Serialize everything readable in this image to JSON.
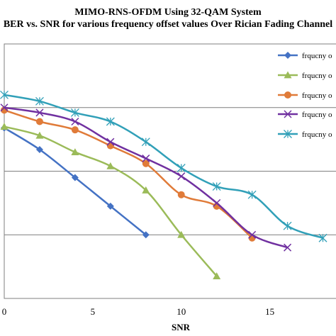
{
  "chart_data": {
    "type": "line",
    "title": "MIMO-RNS-OFDM Using 32-QAM System",
    "subtitle": "BER vs. SNR for various frequency offset values Over Rician Fading Channel",
    "xlabel": "SNR",
    "ylabel": "",
    "xlim": [
      0,
      18.5
    ],
    "ylim": [
      0,
      4
    ],
    "x_ticks": [
      "0",
      "5",
      "10",
      "15"
    ],
    "x_tick_values": [
      0,
      5,
      10,
      15
    ],
    "grid": true,
    "legend_position": "right",
    "series": [
      {
        "name": "frqucny o",
        "color": "#4472C4",
        "marker": "diamond",
        "points": [
          [
            0,
            2.68
          ],
          [
            2,
            2.34
          ],
          [
            4,
            1.9
          ],
          [
            6,
            1.45
          ],
          [
            8,
            1.0
          ]
        ]
      },
      {
        "name": "frqucny o",
        "color": "#9BBB59",
        "marker": "triangle",
        "points": [
          [
            0,
            2.7
          ],
          [
            2,
            2.56
          ],
          [
            4,
            2.3
          ],
          [
            6,
            2.08
          ],
          [
            8,
            1.7
          ],
          [
            10,
            1.0
          ],
          [
            12,
            0.35
          ]
        ]
      },
      {
        "name": "frqucny o",
        "color": "#E07B39",
        "marker": "circle",
        "points": [
          [
            0,
            2.96
          ],
          [
            2,
            2.78
          ],
          [
            4,
            2.65
          ],
          [
            6,
            2.4
          ],
          [
            8,
            2.12
          ],
          [
            10,
            1.63
          ],
          [
            12,
            1.45
          ],
          [
            14,
            0.95
          ]
        ]
      },
      {
        "name": "frqucny o",
        "color": "#7030A0",
        "marker": "x",
        "points": [
          [
            0,
            3.0
          ],
          [
            2,
            2.92
          ],
          [
            4,
            2.78
          ],
          [
            6,
            2.46
          ],
          [
            8,
            2.2
          ],
          [
            10,
            1.92
          ],
          [
            12,
            1.5
          ],
          [
            14,
            1.0
          ],
          [
            16,
            0.8
          ]
        ]
      },
      {
        "name": "frqucny o",
        "color": "#31A0B8",
        "marker": "star",
        "points": [
          [
            0,
            3.2
          ],
          [
            2,
            3.1
          ],
          [
            4,
            2.92
          ],
          [
            6,
            2.78
          ],
          [
            8,
            2.46
          ],
          [
            10,
            2.05
          ],
          [
            12,
            1.76
          ],
          [
            14,
            1.63
          ],
          [
            16,
            1.14
          ],
          [
            18,
            0.95
          ]
        ]
      }
    ]
  }
}
